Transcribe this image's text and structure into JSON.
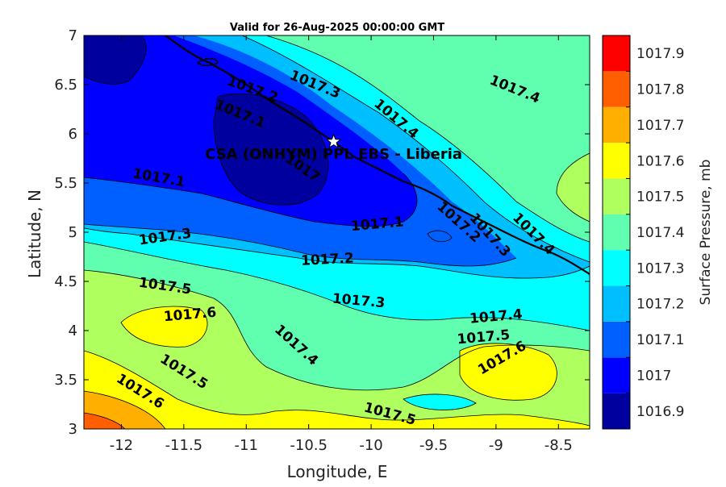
{
  "map": {
    "title": "Valid for 26-Aug-2025 00:00:00 GMT",
    "xlabel": "Longitude, E",
    "ylabel": "Latitude, N",
    "location_label": "CSA (ONHYM) PPL EBS  - Liberia",
    "marker_icon": "white-star-icon",
    "x_range": [
      -12.3,
      -8.25
    ],
    "y_range": [
      3,
      7
    ],
    "x_ticks": [
      "-12",
      "-11.5",
      "-11",
      "-10.5",
      "-10",
      "-9.5",
      "-9",
      "-8.5"
    ],
    "y_ticks": [
      "3",
      "3.5",
      "4",
      "4.5",
      "5",
      "5.5",
      "6",
      "6.5",
      "7"
    ],
    "star_location": {
      "lon": -10.3,
      "lat": 5.92
    }
  },
  "colorbar": {
    "label": "Surface Pressure, mb",
    "levels": [
      "1016.9",
      "1017",
      "1017.1",
      "1017.2",
      "1017.3",
      "1017.4",
      "1017.5",
      "1017.6",
      "1017.7",
      "1017.8",
      "1017.9"
    ],
    "colors": [
      "#00009f",
      "#0000ff",
      "#005fff",
      "#00bfff",
      "#00ffff",
      "#5fffaf",
      "#afff5f",
      "#ffff00",
      "#ffaf00",
      "#ff5f00",
      "#ff0000"
    ]
  },
  "contour_labels": [
    {
      "text": "1017.2",
      "lon": -10.95,
      "lat": 6.45,
      "angle": 20
    },
    {
      "text": "1017.3",
      "lon": -10.45,
      "lat": 6.5,
      "angle": 22
    },
    {
      "text": "1017.4",
      "lon": -8.85,
      "lat": 6.45,
      "angle": 22
    },
    {
      "text": "1017.1",
      "lon": -11.05,
      "lat": 6.2,
      "angle": 22
    },
    {
      "text": "1017.4",
      "lon": -9.8,
      "lat": 6.15,
      "angle": 40
    },
    {
      "text": "1017",
      "lon": -10.55,
      "lat": 5.65,
      "angle": 35
    },
    {
      "text": "1017.1",
      "lon": -11.7,
      "lat": 5.55,
      "angle": 10
    },
    {
      "text": "1017.1",
      "lon": -9.95,
      "lat": 5.08,
      "angle": -5
    },
    {
      "text": "1017.2",
      "lon": -9.3,
      "lat": 5.1,
      "angle": 42
    },
    {
      "text": "1017.3",
      "lon": -9.05,
      "lat": 4.97,
      "angle": 48
    },
    {
      "text": "1017.4",
      "lon": -8.7,
      "lat": 4.98,
      "angle": 45
    },
    {
      "text": "1017.3",
      "lon": -11.65,
      "lat": 4.95,
      "angle": -8
    },
    {
      "text": "1017.2",
      "lon": -10.35,
      "lat": 4.72,
      "angle": -3
    },
    {
      "text": "1017.5",
      "lon": -11.65,
      "lat": 4.45,
      "angle": 8
    },
    {
      "text": "1017.3",
      "lon": -10.1,
      "lat": 4.3,
      "angle": 5
    },
    {
      "text": "1017.6",
      "lon": -11.45,
      "lat": 4.16,
      "angle": -5
    },
    {
      "text": "1017.4",
      "lon": -9.0,
      "lat": 4.14,
      "angle": -5
    },
    {
      "text": "1017.5",
      "lon": -9.1,
      "lat": 3.93,
      "angle": -5
    },
    {
      "text": "1017.6",
      "lon": -8.95,
      "lat": 3.72,
      "angle": -30
    },
    {
      "text": "1017.4",
      "lon": -10.6,
      "lat": 3.85,
      "angle": 42
    },
    {
      "text": "1017.5",
      "lon": -11.5,
      "lat": 3.58,
      "angle": 32
    },
    {
      "text": "1017.6",
      "lon": -11.85,
      "lat": 3.38,
      "angle": 32
    },
    {
      "text": "1017.5",
      "lon": -9.85,
      "lat": 3.15,
      "angle": 15
    }
  ]
}
